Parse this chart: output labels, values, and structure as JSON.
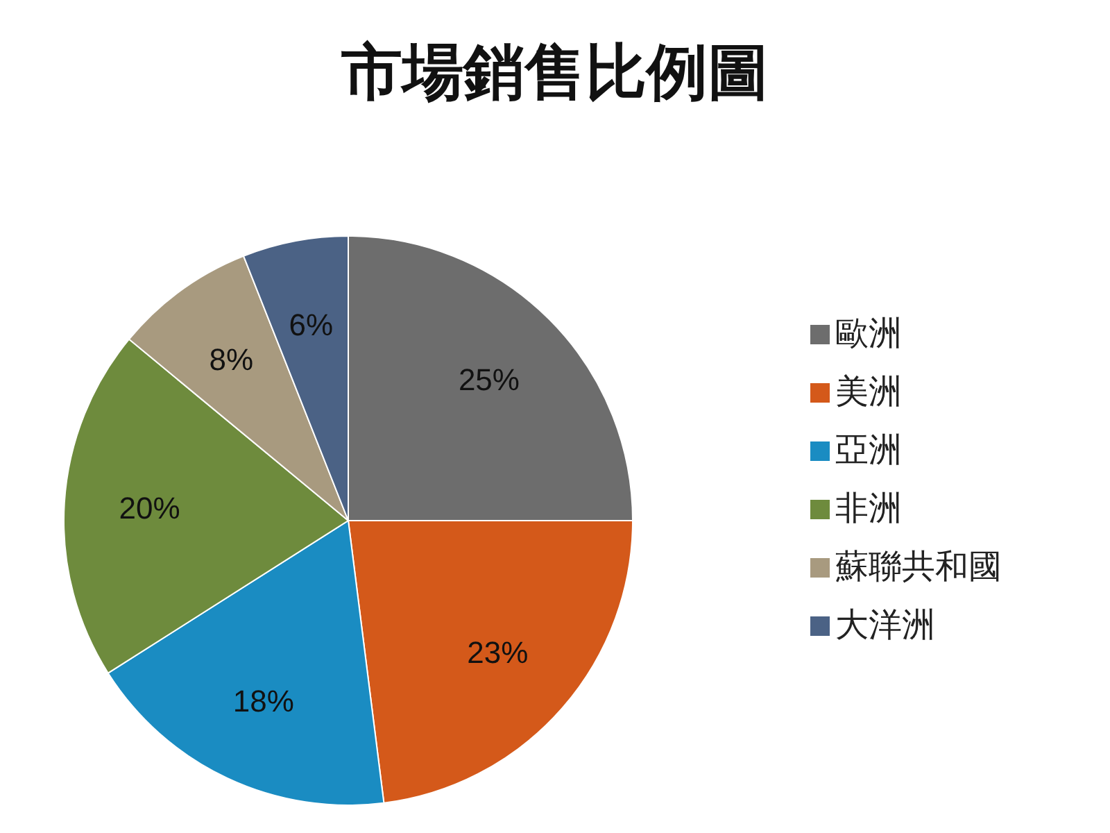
{
  "chart_data": {
    "type": "pie",
    "title": "市場銷售比例圖",
    "categories": [
      "歐洲",
      "美洲",
      "亞洲",
      "非洲",
      "蘇聯共和國",
      "大洋洲"
    ],
    "values": [
      25,
      23,
      18,
      20,
      8,
      6
    ],
    "value_labels": [
      "25%",
      "23%",
      "18%",
      "20%",
      "8%",
      "6%"
    ],
    "colors": [
      "#6d6d6d",
      "#d4591a",
      "#1a8cc2",
      "#6e8b3d",
      "#a89a7f",
      "#4b6285"
    ],
    "legend": "right"
  }
}
